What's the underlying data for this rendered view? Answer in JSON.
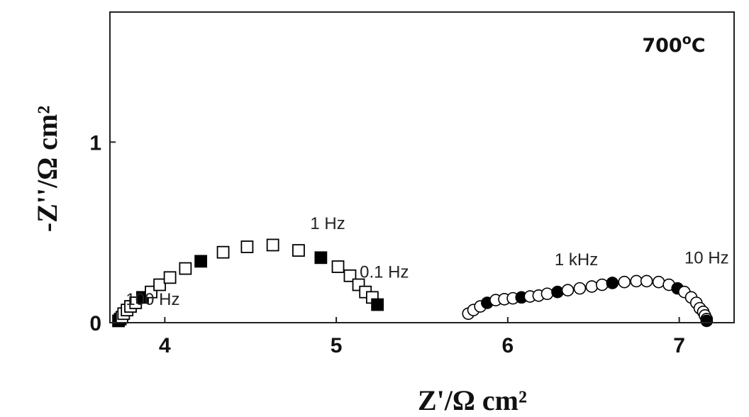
{
  "chart_data": {
    "type": "scatter",
    "title": "",
    "xlabel": "Z'/Ω cm²",
    "ylabel": "-Z''/Ω cm²",
    "xlim": [
      3.68,
      7.32
    ],
    "ylim": [
      0,
      1.72
    ],
    "x_ticks": [
      {
        "value": 4,
        "label": "4"
      },
      {
        "value": 5,
        "label": "5"
      },
      {
        "value": 6,
        "label": "6"
      },
      {
        "value": 7,
        "label": "7"
      }
    ],
    "y_ticks": [
      {
        "value": 0,
        "label": "0"
      },
      {
        "value": 1,
        "label": "1"
      }
    ],
    "grid": false,
    "temperature_label": {
      "base": "700",
      "sup": "o",
      "unit": "C"
    },
    "series": [
      {
        "marker": "square",
        "points": [
          [
            3.73,
            0.01
          ],
          [
            3.74,
            0.02
          ],
          [
            3.75,
            0.03
          ],
          [
            3.76,
            0.05
          ],
          [
            3.78,
            0.07
          ],
          [
            3.8,
            0.09
          ],
          [
            3.83,
            0.11
          ],
          [
            3.87,
            0.14
          ],
          [
            3.92,
            0.17
          ],
          [
            3.97,
            0.21
          ],
          [
            4.03,
            0.25
          ],
          [
            4.12,
            0.3
          ],
          [
            4.21,
            0.34
          ],
          [
            4.34,
            0.39
          ],
          [
            4.48,
            0.42
          ],
          [
            4.63,
            0.43
          ],
          [
            4.78,
            0.4
          ],
          [
            4.91,
            0.36
          ],
          [
            5.01,
            0.31
          ],
          [
            5.08,
            0.26
          ],
          [
            5.13,
            0.21
          ],
          [
            5.17,
            0.17
          ],
          [
            5.21,
            0.14
          ],
          [
            5.24,
            0.1
          ]
        ],
        "filled_points": [
          [
            3.73,
            0.01
          ],
          [
            3.74,
            0.02
          ],
          [
            3.87,
            0.14
          ],
          [
            4.21,
            0.34
          ],
          [
            4.91,
            0.36
          ],
          [
            5.24,
            0.1
          ]
        ]
      },
      {
        "marker": "circle",
        "points": [
          [
            5.77,
            0.05
          ],
          [
            5.8,
            0.07
          ],
          [
            5.84,
            0.09
          ],
          [
            5.88,
            0.11
          ],
          [
            5.93,
            0.125
          ],
          [
            5.98,
            0.13
          ],
          [
            6.03,
            0.135
          ],
          [
            6.08,
            0.14
          ],
          [
            6.13,
            0.145
          ],
          [
            6.18,
            0.15
          ],
          [
            6.23,
            0.16
          ],
          [
            6.29,
            0.17
          ],
          [
            6.35,
            0.18
          ],
          [
            6.42,
            0.19
          ],
          [
            6.49,
            0.2
          ],
          [
            6.55,
            0.21
          ],
          [
            6.61,
            0.22
          ],
          [
            6.68,
            0.225
          ],
          [
            6.75,
            0.23
          ],
          [
            6.81,
            0.23
          ],
          [
            6.88,
            0.225
          ],
          [
            6.94,
            0.21
          ],
          [
            6.99,
            0.19
          ],
          [
            7.03,
            0.17
          ],
          [
            7.07,
            0.14
          ],
          [
            7.1,
            0.11
          ],
          [
            7.12,
            0.08
          ],
          [
            7.14,
            0.06
          ],
          [
            7.15,
            0.04
          ],
          [
            7.16,
            0.02
          ],
          [
            7.16,
            0.01
          ]
        ],
        "filled_points": [
          [
            5.88,
            0.11
          ],
          [
            6.08,
            0.14
          ],
          [
            6.29,
            0.17
          ],
          [
            6.61,
            0.22
          ],
          [
            6.99,
            0.19
          ],
          [
            7.16,
            0.01
          ]
        ]
      }
    ],
    "annotations": [
      {
        "text": "1 Hz",
        "x": 4.95,
        "y": 0.55
      },
      {
        "text": "0.1 Hz",
        "x": 5.28,
        "y": 0.28
      },
      {
        "text": "100 Hz",
        "x": 3.93,
        "y": 0.13
      },
      {
        "text": "1 kHz",
        "x": 6.4,
        "y": 0.35
      },
      {
        "text": "10 Hz",
        "x": 7.16,
        "y": 0.36
      }
    ]
  }
}
